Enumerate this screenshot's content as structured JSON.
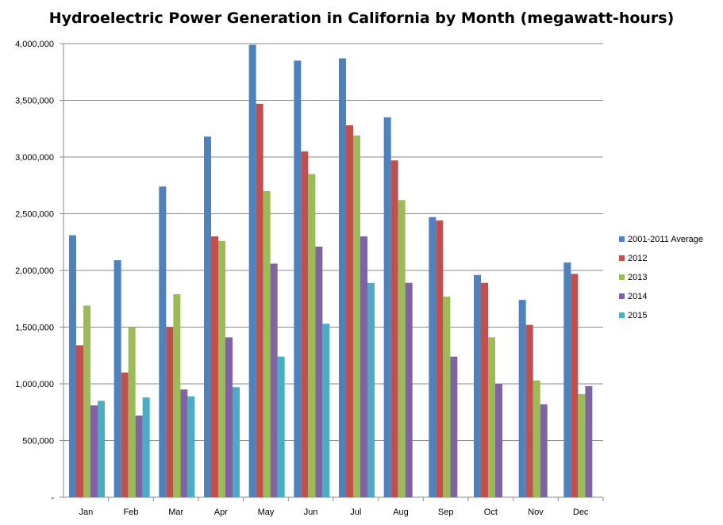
{
  "chart_data": {
    "type": "bar",
    "title": "Hydroelectric Power Generation in California by Month (megawatt-hours)",
    "xlabel": "",
    "ylabel": "",
    "categories": [
      "Jan",
      "Feb",
      "Mar",
      "Apr",
      "May",
      "Jun",
      "Jul",
      "Aug",
      "Sep",
      "Oct",
      "Nov",
      "Dec"
    ],
    "ylim": [
      0,
      4000000
    ],
    "yticks": [
      0,
      500000,
      1000000,
      1500000,
      2000000,
      2500000,
      3000000,
      3500000,
      4000000
    ],
    "ytick_labels": [
      "-",
      "500,000",
      "1,000,000",
      "1,500,000",
      "2,000,000",
      "2,500,000",
      "3,000,000",
      "3,500,000",
      "4,000,000"
    ],
    "grid": true,
    "legend_position": "right",
    "series": [
      {
        "name": "2001-2011 Average",
        "color": "#4F81BD",
        "values": [
          2310000,
          2090000,
          2740000,
          3180000,
          3990000,
          3850000,
          3870000,
          3350000,
          2470000,
          1960000,
          1740000,
          2070000
        ]
      },
      {
        "name": "2012",
        "color": "#C0504D",
        "values": [
          1340000,
          1100000,
          1500000,
          2300000,
          3470000,
          3050000,
          3280000,
          2970000,
          2440000,
          1890000,
          1520000,
          1970000
        ]
      },
      {
        "name": "2013",
        "color": "#9BBB59",
        "values": [
          1690000,
          1500000,
          1790000,
          2260000,
          2700000,
          2850000,
          3190000,
          2620000,
          1770000,
          1410000,
          1030000,
          910000
        ]
      },
      {
        "name": "2014",
        "color": "#8064A2",
        "values": [
          810000,
          720000,
          950000,
          1410000,
          2060000,
          2210000,
          2300000,
          1890000,
          1240000,
          1000000,
          820000,
          980000
        ]
      },
      {
        "name": "2015",
        "color": "#4BACC6",
        "values": [
          850000,
          880000,
          890000,
          970000,
          1240000,
          1530000,
          1890000,
          null,
          null,
          null,
          null,
          null
        ]
      }
    ]
  }
}
